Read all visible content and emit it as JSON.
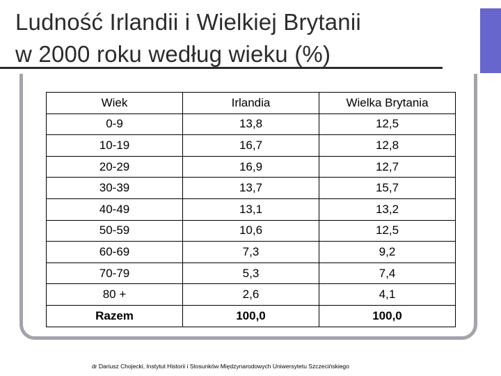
{
  "title": {
    "line1": "Ludność Irlandii i Wielkiej Brytanii",
    "line2": "w 2000 roku według wieku (%)"
  },
  "table": {
    "headers": [
      "Wiek",
      "Irlandia",
      "Wielka Brytania"
    ],
    "rows": [
      [
        "0-9",
        "13,8",
        "12,5"
      ],
      [
        "10-19",
        "16,7",
        "12,8"
      ],
      [
        "20-29",
        "16,9",
        "12,7"
      ],
      [
        "30-39",
        "13,7",
        "15,7"
      ],
      [
        "40-49",
        "13,1",
        "13,2"
      ],
      [
        "50-59",
        "10,6",
        "12,5"
      ],
      [
        "60-69",
        "7,3",
        "9,2"
      ],
      [
        "70-79",
        "5,3",
        "7,4"
      ],
      [
        "80 +",
        "2,6",
        "4,1"
      ]
    ],
    "total": [
      "Razem",
      "100,0",
      "100,0"
    ]
  },
  "footer": "dr Dariusz Chojecki, Instytut Historii i Stosunków Międzynarodowych Uniwersytetu Szczecińskiego",
  "colors": {
    "title_band": "#6666cc",
    "frame": "#a3a3ab",
    "text": "#2b2b2b"
  }
}
